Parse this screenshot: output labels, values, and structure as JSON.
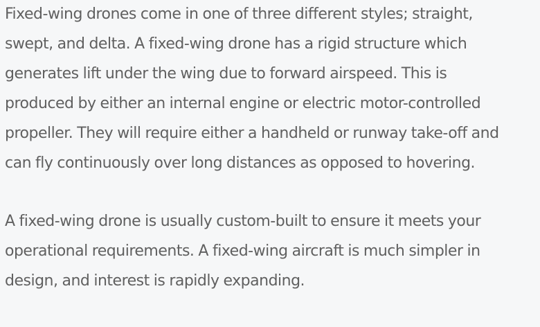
{
  "article": {
    "paragraph_1": [
      "Fixed-wing drones come in one of three different styles; straight,",
      "swept, and delta. A fixed-wing drone has a rigid structure which",
      "generates lift under the wing due to forward airspeed. This is",
      "produced by either an internal engine or electric motor-controlled",
      "propeller. They will require either a handheld or runway take-off and",
      "can fly continuously over long distances as opposed to hovering."
    ],
    "paragraph_2": [
      "A fixed-wing drone is usually custom-built to ensure it meets your",
      "operational requirements. A fixed-wing aircraft is much simpler in",
      "design, and interest is rapidly expanding."
    ]
  }
}
